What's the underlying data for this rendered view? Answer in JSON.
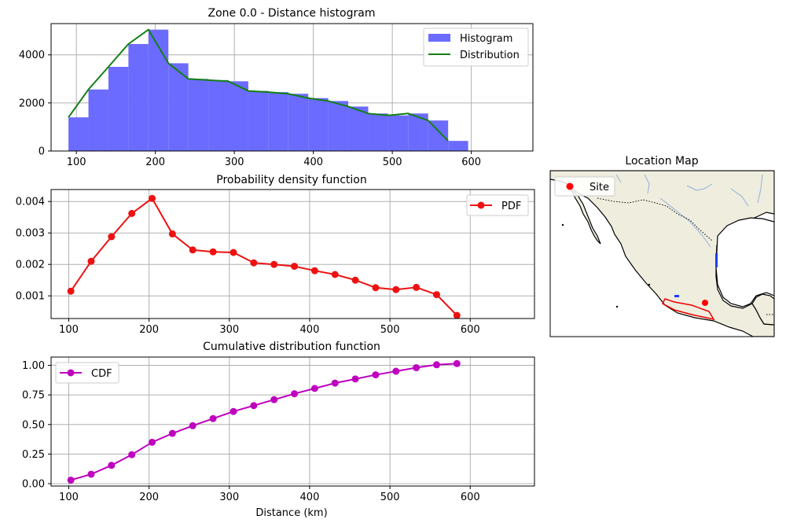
{
  "chart_data": [
    {
      "type": "bar",
      "title": "Zone 0.0 - Distance histogram",
      "xlim": [
        68,
        678
      ],
      "ylim": [
        0,
        5300
      ],
      "xticks": [
        100,
        200,
        300,
        400,
        500,
        600
      ],
      "yticks": [
        0,
        2000,
        4000
      ],
      "grid": true,
      "legend_position": "upper right",
      "bin_edges": [
        90,
        115.3,
        140.6,
        165.9,
        191.2,
        216.5,
        241.8,
        267.1,
        292.4,
        317.7,
        343,
        368.3,
        393.6,
        418.9,
        444.2,
        469.5,
        494.8,
        520.1,
        545.4,
        570.7,
        596
      ],
      "histogram": {
        "name": "Histogram",
        "color": "#6b6bff",
        "values": [
          1400,
          2560,
          3500,
          4450,
          5050,
          3650,
          3000,
          2950,
          2900,
          2500,
          2450,
          2380,
          2200,
          2080,
          1850,
          1560,
          1480,
          1560,
          1270,
          420
        ]
      },
      "distribution": {
        "name": "Distribution",
        "color": "#138013",
        "x": [
          90,
          115.3,
          140.6,
          165.9,
          191.2,
          216.5,
          241.8,
          267.1,
          292.4,
          317.7,
          343,
          368.3,
          393.6,
          418.9,
          444.2,
          469.5,
          494.8,
          520.1,
          545.4,
          570.7
        ],
        "y": [
          1400,
          2560,
          3500,
          4450,
          5050,
          3650,
          3000,
          2950,
          2900,
          2500,
          2450,
          2380,
          2200,
          2080,
          1850,
          1560,
          1480,
          1560,
          1270,
          420
        ]
      }
    },
    {
      "type": "line",
      "title": "Probability density function",
      "xlim": [
        78,
        680
      ],
      "ylim": [
        0.00028,
        0.00438
      ],
      "xticks": [
        100,
        200,
        300,
        400,
        500,
        600
      ],
      "yticks": [
        0.001,
        0.002,
        0.003,
        0.004
      ],
      "ytick_labels": [
        "0.001",
        "0.002",
        "0.003",
        "0.004"
      ],
      "grid": true,
      "legend_position": "upper right",
      "series": [
        {
          "name": "PDF",
          "color": "#ee1111",
          "x": [
            102.6,
            127.9,
            153.2,
            178.5,
            203.8,
            229.1,
            254.4,
            279.7,
            305.1,
            330.4,
            355.7,
            381,
            406.3,
            431.6,
            456.9,
            482.2,
            507.5,
            532.8,
            558.1,
            583.4
          ],
          "y": [
            0.00115,
            0.0021,
            0.00288,
            0.00362,
            0.0041,
            0.00297,
            0.00246,
            0.0024,
            0.00238,
            0.00205,
            0.002,
            0.00194,
            0.0018,
            0.00168,
            0.0015,
            0.00126,
            0.0012,
            0.00127,
            0.00104,
            0.00038
          ]
        }
      ]
    },
    {
      "type": "line",
      "title": "Cumulative distribution function",
      "xlabel": "Distance (km)",
      "xlim": [
        78,
        680
      ],
      "ylim": [
        -0.02,
        1.07
      ],
      "xticks": [
        100,
        200,
        300,
        400,
        500,
        600
      ],
      "yticks": [
        0,
        0.25,
        0.5,
        0.75,
        1.0
      ],
      "ytick_labels": [
        "0.00",
        "0.25",
        "0.50",
        "0.75",
        "1.00"
      ],
      "grid": true,
      "legend_position": "upper left",
      "series": [
        {
          "name": "CDF",
          "color": "#bf00bf",
          "x": [
            102.6,
            127.9,
            153.2,
            178.5,
            203.8,
            229.1,
            254.4,
            279.7,
            305.1,
            330.4,
            355.7,
            381,
            406.3,
            431.6,
            456.9,
            482.2,
            507.5,
            532.8,
            558.1,
            583.4
          ],
          "y": [
            0.03,
            0.08,
            0.155,
            0.245,
            0.35,
            0.425,
            0.49,
            0.55,
            0.61,
            0.66,
            0.71,
            0.76,
            0.805,
            0.85,
            0.885,
            0.92,
            0.95,
            0.98,
            1.005,
            1.015
          ]
        }
      ]
    }
  ],
  "map": {
    "title": "Location Map",
    "legend_label": "Site",
    "site_color": "#ff0000",
    "land_color": "#efedde",
    "water_color": "#ffffff",
    "river_color": "#8fb0d8",
    "zone_color": "#ee0000"
  }
}
